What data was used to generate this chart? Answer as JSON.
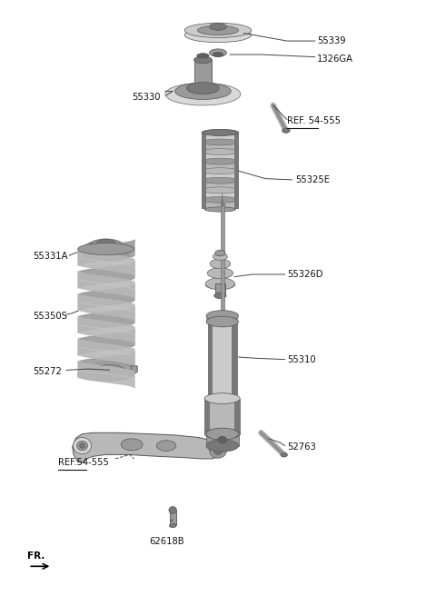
{
  "background_color": "#ffffff",
  "fig_width": 4.8,
  "fig_height": 6.56,
  "dpi": 100,
  "parts": [
    {
      "id": "55339",
      "label": "55339",
      "xl": 0.73,
      "yl": 0.935,
      "ha": "left"
    },
    {
      "id": "1326GA",
      "label": "1326GA",
      "xl": 0.73,
      "yl": 0.905,
      "ha": "left"
    },
    {
      "id": "55330",
      "label": "55330",
      "xl": 0.3,
      "yl": 0.84,
      "ha": "left"
    },
    {
      "id": "REF555a",
      "label": "REF. 54-555",
      "xl": 0.66,
      "yl": 0.8,
      "ha": "left",
      "underline": true
    },
    {
      "id": "55325E",
      "label": "55325E",
      "xl": 0.68,
      "yl": 0.7,
      "ha": "left"
    },
    {
      "id": "55331A",
      "label": "55331A",
      "xl": 0.07,
      "yl": 0.57,
      "ha": "left"
    },
    {
      "id": "55326D",
      "label": "55326D",
      "xl": 0.66,
      "yl": 0.54,
      "ha": "left"
    },
    {
      "id": "55350S",
      "label": "55350S",
      "xl": 0.07,
      "yl": 0.47,
      "ha": "left"
    },
    {
      "id": "55272",
      "label": "55272",
      "xl": 0.07,
      "yl": 0.375,
      "ha": "left"
    },
    {
      "id": "55310",
      "label": "55310",
      "xl": 0.66,
      "yl": 0.395,
      "ha": "left"
    },
    {
      "id": "REF555b",
      "label": "REF.54-555",
      "xl": 0.13,
      "yl": 0.222,
      "ha": "left",
      "underline": true
    },
    {
      "id": "52763",
      "label": "52763",
      "xl": 0.66,
      "yl": 0.248,
      "ha": "left"
    },
    {
      "id": "62618B",
      "label": "62618B",
      "xl": 0.38,
      "yl": 0.088,
      "ha": "center"
    }
  ]
}
